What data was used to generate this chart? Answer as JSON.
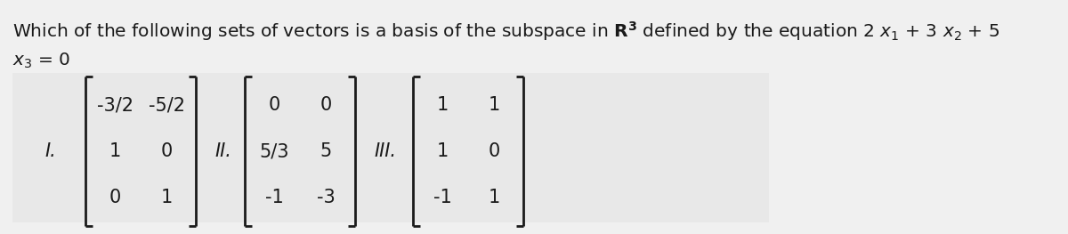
{
  "bg_color": "#f0f0f0",
  "text_color": "#1a1a1a",
  "matrix_box_color": "#e8e8e8",
  "matrix_I": [
    [
      "-3/2",
      "-5/2"
    ],
    [
      "1",
      "0"
    ],
    [
      "0",
      "1"
    ]
  ],
  "matrix_II": [
    [
      "0",
      "0"
    ],
    [
      "5/3",
      "5"
    ],
    [
      "-1",
      "-3"
    ]
  ],
  "matrix_III": [
    [
      "1",
      "1"
    ],
    [
      "1",
      "0"
    ],
    [
      "-1",
      "1"
    ]
  ],
  "label_I": "I.",
  "label_II": "II.",
  "label_III": "III.",
  "font_size_title": 14.5,
  "font_size_matrix": 15,
  "font_size_label": 15
}
